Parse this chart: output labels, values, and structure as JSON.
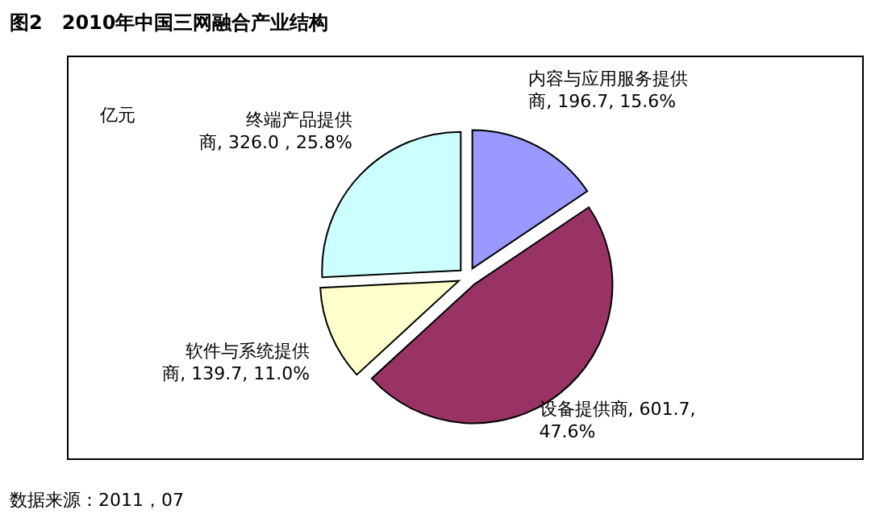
{
  "chart_data": {
    "type": "pie",
    "title": "图2　2010年中国三网融合产业结构",
    "annotations": [
      "亿元",
      "数据来源：2011，07"
    ],
    "categories": [
      "内容与应用服务提供商",
      "设备提供商",
      "软件与系统提供商",
      "终端产品提供商"
    ],
    "values": [
      196.7,
      601.7,
      139.7,
      326.0
    ],
    "value_labels": [
      "196.7, 15.6%",
      "601.7, 47.6%",
      "139.7, 11.0%",
      "326.0 , 25.8%"
    ],
    "colors": [
      "#9999ff",
      "#993366",
      "#ffffcc",
      "#ccffff"
    ]
  }
}
